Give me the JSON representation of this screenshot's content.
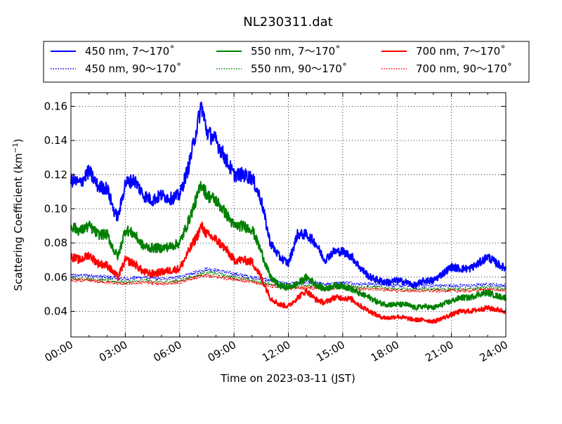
{
  "chart_data": {
    "type": "line",
    "title": "NL230311.dat",
    "xlabel": "Time on 2023-03-11 (JST)",
    "ylabel": "Scattering Coefficient (km",
    "ylabel_unit_superscript": "−1",
    "ylabel_close": ")",
    "xlim": [
      0,
      24
    ],
    "ylim": [
      0.025,
      0.168
    ],
    "x_ticks": [
      0,
      3,
      6,
      9,
      12,
      15,
      18,
      21,
      24
    ],
    "x_tick_labels": [
      "00:00",
      "03:00",
      "06:00",
      "09:00",
      "12:00",
      "15:00",
      "18:00",
      "21:00",
      "24:00"
    ],
    "y_ticks": [
      0.04,
      0.06,
      0.08,
      0.1,
      0.12,
      0.14,
      0.16
    ],
    "y_tick_labels": [
      "0.04",
      "0.06",
      "0.08",
      "0.10",
      "0.12",
      "0.14",
      "0.16"
    ],
    "grid": true,
    "grid_style": "dotted",
    "legend_position": "top, above plot",
    "series": [
      {
        "name": "450 nm, 7～170˚",
        "color": "#0000ff",
        "style": "solid",
        "x": [
          0,
          0.5,
          1,
          1.5,
          2,
          2.4,
          2.6,
          3,
          3.5,
          4,
          4.5,
          5,
          5.5,
          6,
          6.5,
          7,
          7.2,
          7.5,
          8,
          8.5,
          9,
          9.5,
          10,
          10.5,
          11,
          11.5,
          12,
          12.5,
          13,
          13.5,
          14,
          14.5,
          15,
          15.5,
          16,
          16.5,
          17,
          17.5,
          18,
          18.5,
          19,
          19.5,
          20,
          20.5,
          21,
          21.5,
          22,
          22.5,
          23,
          23.5,
          24
        ],
        "y": [
          0.117,
          0.115,
          0.122,
          0.113,
          0.112,
          0.098,
          0.095,
          0.115,
          0.117,
          0.108,
          0.105,
          0.108,
          0.106,
          0.108,
          0.125,
          0.15,
          0.161,
          0.145,
          0.14,
          0.13,
          0.12,
          0.12,
          0.118,
          0.105,
          0.08,
          0.072,
          0.068,
          0.085,
          0.085,
          0.08,
          0.07,
          0.075,
          0.075,
          0.072,
          0.065,
          0.06,
          0.058,
          0.057,
          0.058,
          0.057,
          0.055,
          0.058,
          0.058,
          0.062,
          0.066,
          0.065,
          0.065,
          0.068,
          0.072,
          0.068,
          0.065
        ]
      },
      {
        "name": "550 nm, 7～170˚",
        "color": "#008000",
        "style": "solid",
        "x": [
          0,
          0.5,
          1,
          1.5,
          2,
          2.4,
          2.6,
          3,
          3.5,
          4,
          4.5,
          5,
          5.5,
          6,
          6.5,
          7,
          7.2,
          7.5,
          8,
          8.5,
          9,
          9.5,
          10,
          10.5,
          11,
          11.5,
          12,
          12.5,
          13,
          13.5,
          14,
          14.5,
          15,
          15.5,
          16,
          16.5,
          17,
          17.5,
          18,
          18.5,
          19,
          19.5,
          20,
          20.5,
          21,
          21.5,
          22,
          22.5,
          23,
          23.5,
          24
        ],
        "y": [
          0.09,
          0.087,
          0.09,
          0.085,
          0.085,
          0.075,
          0.072,
          0.088,
          0.085,
          0.078,
          0.077,
          0.077,
          0.078,
          0.08,
          0.093,
          0.108,
          0.115,
          0.108,
          0.105,
          0.098,
          0.09,
          0.09,
          0.088,
          0.075,
          0.06,
          0.055,
          0.054,
          0.056,
          0.06,
          0.056,
          0.053,
          0.055,
          0.055,
          0.053,
          0.05,
          0.048,
          0.045,
          0.044,
          0.044,
          0.044,
          0.042,
          0.043,
          0.042,
          0.044,
          0.046,
          0.048,
          0.048,
          0.05,
          0.051,
          0.049,
          0.048
        ]
      },
      {
        "name": "700 nm, 7～170˚",
        "color": "#ff0000",
        "style": "solid",
        "x": [
          0,
          0.5,
          1,
          1.5,
          2,
          2.4,
          2.6,
          3,
          3.5,
          4,
          4.5,
          5,
          5.5,
          6,
          6.5,
          7,
          7.2,
          7.5,
          8,
          8.5,
          9,
          9.5,
          10,
          10.5,
          11,
          11.5,
          12,
          12.5,
          13,
          13.5,
          14,
          14.5,
          15,
          15.5,
          16,
          16.5,
          17,
          17.5,
          18,
          18.5,
          19,
          19.5,
          20,
          20.5,
          21,
          21.5,
          22,
          22.5,
          23,
          23.5,
          24
        ],
        "y": [
          0.072,
          0.07,
          0.073,
          0.068,
          0.067,
          0.062,
          0.06,
          0.07,
          0.068,
          0.063,
          0.062,
          0.063,
          0.064,
          0.065,
          0.075,
          0.085,
          0.09,
          0.085,
          0.082,
          0.077,
          0.07,
          0.07,
          0.069,
          0.06,
          0.048,
          0.044,
          0.043,
          0.048,
          0.052,
          0.047,
          0.045,
          0.048,
          0.048,
          0.047,
          0.043,
          0.04,
          0.037,
          0.036,
          0.037,
          0.036,
          0.035,
          0.035,
          0.034,
          0.036,
          0.038,
          0.04,
          0.04,
          0.041,
          0.042,
          0.041,
          0.04
        ]
      },
      {
        "name": "450 nm, 90～170˚",
        "color": "#0000ff",
        "style": "dotted",
        "x": [
          0,
          1,
          2,
          3,
          4,
          5,
          6,
          7,
          7.5,
          8,
          9,
          10,
          11,
          12,
          13,
          14,
          15,
          16,
          17,
          18,
          19,
          20,
          21,
          22,
          23,
          24
        ],
        "y": [
          0.061,
          0.061,
          0.06,
          0.059,
          0.06,
          0.059,
          0.06,
          0.063,
          0.065,
          0.064,
          0.062,
          0.06,
          0.058,
          0.056,
          0.057,
          0.056,
          0.057,
          0.056,
          0.056,
          0.055,
          0.055,
          0.055,
          0.055,
          0.055,
          0.056,
          0.055
        ]
      },
      {
        "name": "550 nm, 90～170˚",
        "color": "#008000",
        "style": "dotted",
        "x": [
          0,
          1,
          2,
          3,
          4,
          5,
          6,
          7,
          7.5,
          8,
          9,
          10,
          11,
          12,
          13,
          14,
          15,
          16,
          17,
          18,
          19,
          20,
          21,
          22,
          23,
          24
        ],
        "y": [
          0.059,
          0.059,
          0.058,
          0.057,
          0.058,
          0.057,
          0.058,
          0.061,
          0.063,
          0.062,
          0.06,
          0.058,
          0.056,
          0.054,
          0.055,
          0.054,
          0.055,
          0.054,
          0.054,
          0.053,
          0.053,
          0.053,
          0.053,
          0.053,
          0.054,
          0.053
        ]
      },
      {
        "name": "700 nm, 90～170˚",
        "color": "#ff0000",
        "style": "dotted",
        "x": [
          0,
          1,
          2,
          3,
          4,
          5,
          6,
          7,
          7.5,
          8,
          9,
          10,
          11,
          12,
          13,
          14,
          15,
          16,
          17,
          18,
          19,
          20,
          21,
          22,
          23,
          24
        ],
        "y": [
          0.058,
          0.058,
          0.057,
          0.056,
          0.057,
          0.056,
          0.057,
          0.06,
          0.061,
          0.06,
          0.059,
          0.057,
          0.055,
          0.053,
          0.054,
          0.053,
          0.054,
          0.053,
          0.053,
          0.052,
          0.052,
          0.052,
          0.052,
          0.052,
          0.053,
          0.052
        ]
      }
    ],
    "legend_order": [
      0,
      3,
      1,
      4,
      2,
      5
    ]
  }
}
